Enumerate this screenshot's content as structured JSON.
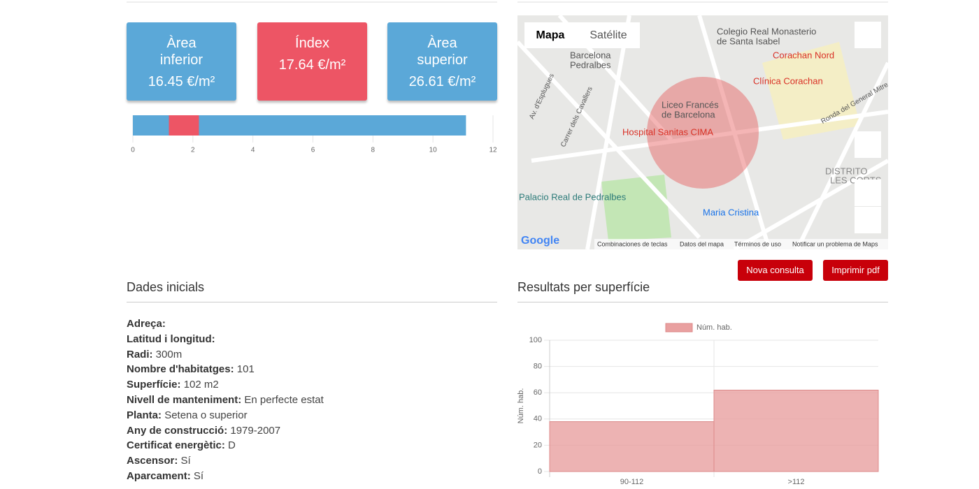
{
  "cards": [
    {
      "label": "Àrea inferior",
      "value": "16.45 €/m²"
    },
    {
      "label": "Índex",
      "value": "17.64 €/m²"
    },
    {
      "label": "Àrea superior",
      "value": "26.61 €/m²"
    }
  ],
  "chart_data": [
    {
      "type": "range",
      "segments": [
        {
          "color": "#5ba8d8",
          "values": [
            0,
            11.1
          ]
        },
        {
          "color": "#ed5565",
          "values": [
            1.2,
            2.2
          ]
        }
      ],
      "xlim": [
        0,
        12
      ],
      "xticks": [
        0,
        2,
        4,
        6,
        8,
        10,
        12
      ]
    },
    {
      "type": "bar",
      "title": "Resultats per superfície",
      "categories": [
        "90-112",
        ">112"
      ],
      "series": [
        {
          "name": "Núm. hab.",
          "color": "#e9a0a0",
          "values": [
            38,
            62
          ]
        }
      ],
      "y_label": "Núm. hab.",
      "ylim": [
        0,
        100
      ],
      "yticks": [
        0,
        20,
        40,
        60,
        80,
        100
      ],
      "grid": true
    }
  ],
  "map": {
    "tabs": [
      "Mapa",
      "Satélite"
    ],
    "labels": [
      "Colegio Real Monasterio",
      "de Santa Isabel",
      "Barcelona",
      "Pedralbes",
      "Corachan Nord",
      "Clínica Corachan",
      "Liceo Francés",
      "de Barcelona",
      "Hospital Sanitas CIMA",
      "Ronda del General Mitre",
      "DISTRITO",
      "LES CORTS",
      "Palacio Real de Pedralbes",
      "Maria Cristina",
      "Av. d'Esplugues",
      "Carrer dels Cavallers"
    ],
    "footer": [
      "Google",
      "Combinaciones de teclas",
      "Datos del mapa",
      "Términos de uso",
      "Notificar un problema de Maps"
    ]
  },
  "buttons": [
    "Nova consulta",
    "Imprimir pdf"
  ],
  "details": {
    "title": "Dades inicials",
    "items": [
      {
        "label": "Adreça:"
      },
      {
        "label": "Latitud i longitud:"
      },
      {
        "label": "Radi:",
        "value": "300m"
      },
      {
        "label": "Nombre d'habitatges:",
        "value": "101"
      },
      {
        "label": "Superfície:",
        "value": "102 m2"
      },
      {
        "label": "Nivell de manteniment:",
        "value": "En perfecte estat"
      },
      {
        "label": "Planta:",
        "value": "Setena o superior"
      },
      {
        "label": "Any de construcció:",
        "value": "1979-2007"
      },
      {
        "label": "Certificat energètic:",
        "value": "D"
      },
      {
        "label": "Ascensor:",
        "value": "Sí"
      },
      {
        "label": "Aparcament:",
        "value": "Sí"
      }
    ]
  }
}
